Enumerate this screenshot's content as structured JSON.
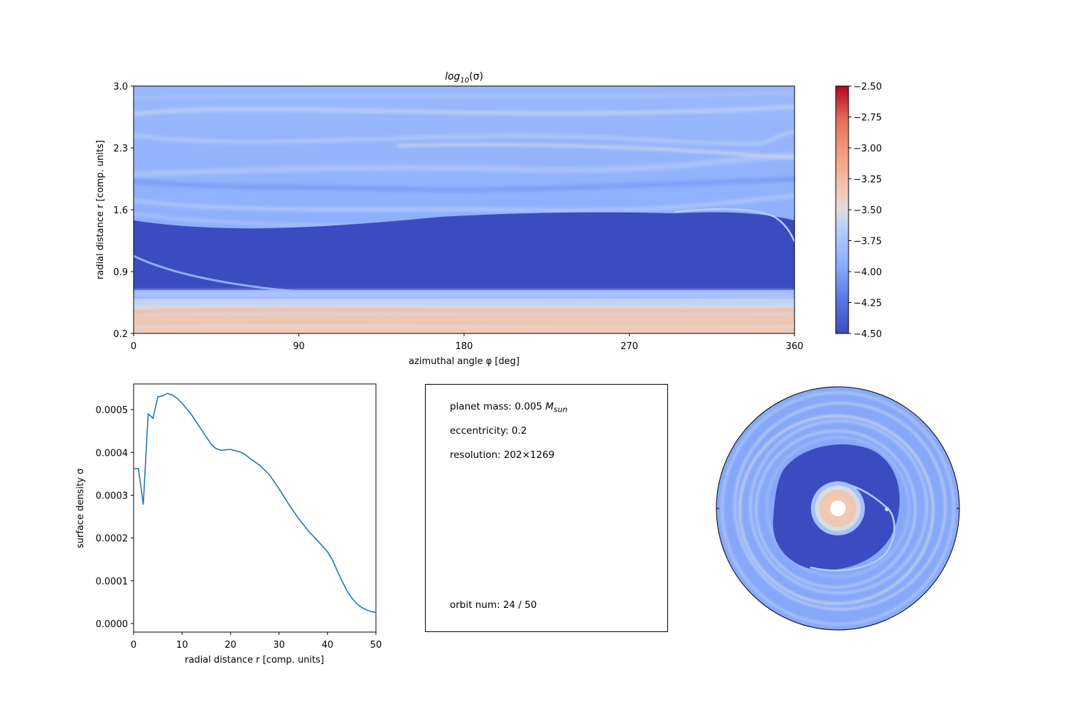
{
  "colormap": {
    "stops": [
      "#3b4cc0",
      "#6788ee",
      "#9abbff",
      "#c9d7f0",
      "#edd1c2",
      "#f7a889",
      "#e26952",
      "#b40426"
    ]
  },
  "heatmap": {
    "title_base": "log",
    "title_sub": "10",
    "title_arg": "(σ)",
    "xlabel": "azimuthal angle φ [deg]",
    "ylabel": "radial distance r [comp. units]",
    "x_ticks": [
      "0",
      "90",
      "180",
      "270",
      "360"
    ],
    "y_ticks": [
      "3.0",
      "2.3",
      "1.6",
      "0.9",
      "0.2"
    ]
  },
  "colorbar": {
    "ticks": [
      "−2.50",
      "−2.75",
      "−3.00",
      "−3.25",
      "−3.50",
      "−3.75",
      "−4.00",
      "−4.25",
      "−4.50"
    ]
  },
  "profile": {
    "xlabel": "radial distance r [comp. units]",
    "ylabel": "surface density σ",
    "x_ticks": [
      "0",
      "10",
      "20",
      "30",
      "40",
      "50"
    ],
    "y_ticks": [
      "0.0005",
      "0.0004",
      "0.0003",
      "0.0002",
      "0.0001",
      "0.0000"
    ],
    "line_color": "#1f77b4"
  },
  "info": {
    "planet_mass_label": "planet mass: 0.005 ",
    "planet_mass_unit": "M",
    "planet_mass_unit_sub": "sun",
    "eccentricity": "eccentricity: 0.2",
    "resolution": "resolution: 202×1269",
    "orbit": "orbit num: 24 / 50"
  },
  "chart_data": [
    {
      "type": "heatmap",
      "title": "log10(σ)",
      "xlabel": "azimuthal angle φ [deg]",
      "ylabel": "radial distance r [comp. units]",
      "xlim": [
        0,
        360
      ],
      "ylim": [
        0.2,
        3.0
      ],
      "x_ticks": [
        0,
        90,
        180,
        270,
        360
      ],
      "y_ticks": [
        0.2,
        0.9,
        1.6,
        2.3,
        3.0
      ],
      "colormap": "coolwarm",
      "clim": [
        -4.5,
        -2.5
      ],
      "colorbar_ticks": [
        -2.5,
        -2.75,
        -3.0,
        -3.25,
        -3.5,
        -3.75,
        -4.0,
        -4.25,
        -4.5
      ]
    },
    {
      "type": "line",
      "xlabel": "radial distance r [comp. units]",
      "ylabel": "surface density σ",
      "xlim": [
        0,
        50
      ],
      "ylim": [
        -2e-05,
        0.00056
      ],
      "x": [
        0,
        1,
        2,
        3,
        4,
        5,
        6,
        7,
        8,
        9,
        10,
        12,
        14,
        16,
        17,
        18,
        20,
        22,
        23,
        24,
        26,
        28,
        30,
        32,
        34,
        36,
        38,
        40,
        41,
        42,
        43,
        44,
        45,
        46,
        47,
        48,
        49,
        50
      ],
      "y": [
        0.000362,
        0.000362,
        0.000278,
        0.00049,
        0.00048,
        0.00053,
        0.000532,
        0.000538,
        0.000534,
        0.000526,
        0.000515,
        0.000487,
        0.000453,
        0.000419,
        0.000409,
        0.000405,
        0.000407,
        0.000401,
        0.000395,
        0.000386,
        0.00037,
        0.000348,
        0.000315,
        0.000279,
        0.000246,
        0.000217,
        0.000193,
        0.000168,
        0.000149,
        0.000124,
        9.9e-05,
        7.7e-05,
        6e-05,
        4.7e-05,
        3.8e-05,
        3.2e-05,
        2.8e-05,
        2.6e-05
      ]
    },
    {
      "type": "heatmap",
      "projection": "polar",
      "note_values": "same log10(σ) field as first panel in polar coordinates"
    }
  ]
}
